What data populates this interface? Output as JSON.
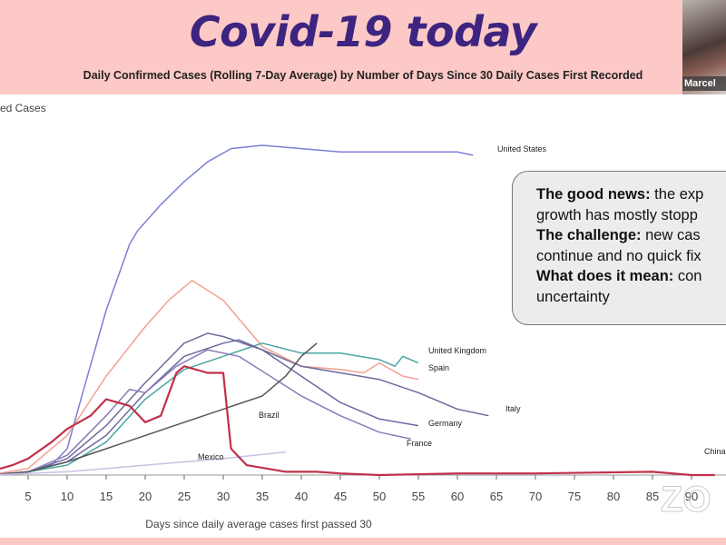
{
  "header": {
    "title": "Covid-19 today",
    "subtitle": "Daily Confirmed Cases (Rolling 7-Day Average) by Number of Days Since 30 Daily Cases First Recorded"
  },
  "webcam": {
    "name": "Marcel"
  },
  "callout": {
    "line1_bold": "The good news:",
    "line1_rest": " the exp",
    "line2": "growth has mostly stopp",
    "line3_bold": "The challenge:",
    "line3_rest": " new cas",
    "line4": "continue and no quick fix",
    "line5_bold": "What does it mean:",
    "line5_rest": " con",
    "line6": "uncertainty"
  },
  "watermark": "ZO",
  "chart_data": {
    "type": "line",
    "title": "Daily Confirmed Cases (Rolling 7-Day Average) by Number of Days Since 30 Daily Cases First Recorded",
    "xlabel": "Days since daily average cases first passed 30",
    "ylabel": "ed Cases",
    "xticks": [
      5,
      10,
      15,
      20,
      25,
      30,
      35,
      40,
      45,
      50,
      55,
      60,
      65,
      70,
      75,
      80,
      85,
      90
    ],
    "xlim": [
      0,
      93
    ],
    "ylim": [
      0,
      100
    ],
    "y_units": "relative (US peak = 100)",
    "series": [
      {
        "name": "United States",
        "color": "#7b7fd6",
        "points": [
          [
            0,
            0
          ],
          [
            5,
            1
          ],
          [
            8,
            3
          ],
          [
            10,
            8
          ],
          [
            12,
            25
          ],
          [
            15,
            50
          ],
          [
            18,
            70
          ],
          [
            19,
            74
          ],
          [
            22,
            82
          ],
          [
            25,
            89
          ],
          [
            28,
            95
          ],
          [
            31,
            99
          ],
          [
            35,
            100
          ],
          [
            40,
            99
          ],
          [
            45,
            98
          ],
          [
            50,
            98
          ],
          [
            55,
            98
          ],
          [
            60,
            98
          ],
          [
            62,
            97
          ]
        ]
      },
      {
        "name": "Spain",
        "color": "#f2a090",
        "points": [
          [
            0,
            0
          ],
          [
            5,
            2
          ],
          [
            10,
            12
          ],
          [
            15,
            30
          ],
          [
            20,
            45
          ],
          [
            23,
            53
          ],
          [
            26,
            59
          ],
          [
            30,
            53
          ],
          [
            35,
            39
          ],
          [
            40,
            33
          ],
          [
            45,
            32
          ],
          [
            48,
            31
          ],
          [
            50,
            34
          ],
          [
            53,
            30
          ],
          [
            55,
            29
          ]
        ]
      },
      {
        "name": "United Kingdom",
        "color": "#4aa5a0",
        "points": [
          [
            0,
            0
          ],
          [
            5,
            1
          ],
          [
            10,
            3
          ],
          [
            15,
            10
          ],
          [
            20,
            23
          ],
          [
            25,
            32
          ],
          [
            30,
            36
          ],
          [
            35,
            40
          ],
          [
            40,
            37
          ],
          [
            45,
            37
          ],
          [
            50,
            35
          ],
          [
            52,
            33
          ],
          [
            53,
            36
          ],
          [
            55,
            34
          ]
        ]
      },
      {
        "name": "Italy",
        "color": "#6b6b9a",
        "points": [
          [
            0,
            0
          ],
          [
            5,
            1
          ],
          [
            10,
            5
          ],
          [
            15,
            15
          ],
          [
            20,
            28
          ],
          [
            25,
            40
          ],
          [
            28,
            43
          ],
          [
            30,
            42
          ],
          [
            35,
            38
          ],
          [
            40,
            33
          ],
          [
            45,
            31
          ],
          [
            50,
            29
          ],
          [
            55,
            25
          ],
          [
            60,
            20
          ],
          [
            64,
            18
          ]
        ]
      },
      {
        "name": "Germany",
        "color": "#6a6aa0",
        "points": [
          [
            0,
            0
          ],
          [
            5,
            1
          ],
          [
            10,
            4
          ],
          [
            15,
            12
          ],
          [
            20,
            25
          ],
          [
            25,
            36
          ],
          [
            30,
            40
          ],
          [
            32,
            41
          ],
          [
            35,
            38
          ],
          [
            40,
            30
          ],
          [
            45,
            22
          ],
          [
            50,
            17
          ],
          [
            55,
            15
          ]
        ]
      },
      {
        "name": "France",
        "color": "#8a7ab8",
        "points": [
          [
            0,
            0
          ],
          [
            5,
            1
          ],
          [
            10,
            6
          ],
          [
            15,
            18
          ],
          [
            18,
            26
          ],
          [
            20,
            25
          ],
          [
            24,
            33
          ],
          [
            28,
            38
          ],
          [
            32,
            36
          ],
          [
            36,
            30
          ],
          [
            40,
            24
          ],
          [
            45,
            18
          ],
          [
            50,
            13
          ],
          [
            54,
            11
          ]
        ]
      },
      {
        "name": "Brazil",
        "color": "#555555",
        "points": [
          [
            0,
            0
          ],
          [
            5,
            1
          ],
          [
            10,
            4
          ],
          [
            15,
            8
          ],
          [
            20,
            12
          ],
          [
            25,
            16
          ],
          [
            30,
            20
          ],
          [
            35,
            24
          ],
          [
            38,
            30
          ],
          [
            40,
            36
          ],
          [
            42,
            40
          ]
        ]
      },
      {
        "name": "Mexico",
        "color": "#c8c0e6",
        "points": [
          [
            0,
            0
          ],
          [
            10,
            1
          ],
          [
            20,
            3
          ],
          [
            30,
            5
          ],
          [
            38,
            7
          ]
        ]
      },
      {
        "name": "China",
        "color": "#c0304a",
        "points": [
          [
            0,
            1
          ],
          [
            3,
            3
          ],
          [
            5,
            5
          ],
          [
            8,
            10
          ],
          [
            10,
            14
          ],
          [
            13,
            18
          ],
          [
            15,
            23
          ],
          [
            18,
            21
          ],
          [
            20,
            16
          ],
          [
            22,
            18
          ],
          [
            24,
            31
          ],
          [
            25,
            33
          ],
          [
            28,
            31
          ],
          [
            30,
            31
          ],
          [
            31,
            8
          ],
          [
            33,
            3
          ],
          [
            38,
            1
          ],
          [
            42,
            1
          ],
          [
            45,
            0.5
          ],
          [
            50,
            0
          ],
          [
            60,
            0.5
          ],
          [
            70,
            0.5
          ],
          [
            85,
            1
          ],
          [
            90,
            0
          ],
          [
            93,
            0
          ]
        ]
      }
    ]
  }
}
